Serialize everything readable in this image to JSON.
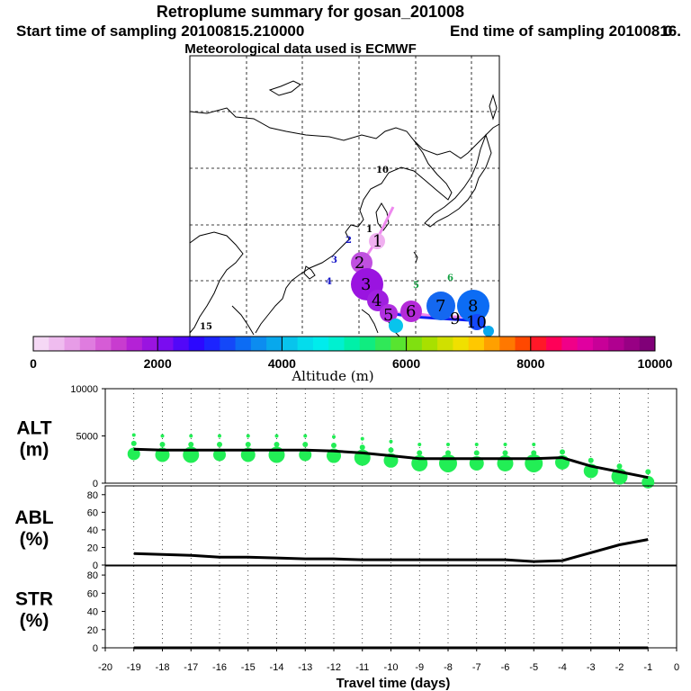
{
  "title": "Retroplume summary for gosan_201008",
  "subtitle_start": "Start time of sampling 20100815.210000",
  "subtitle_end": "End time of sampling 20100816.",
  "subtitle_end_zero": "0",
  "met_line": "Meteorological data used is ECMWF",
  "colorbar": {
    "labels": [
      "0",
      "2000",
      "4000",
      "6000",
      "8000",
      "10000"
    ],
    "title": "Altitude (m)",
    "colors": [
      "#f5d8f5",
      "#efbcef",
      "#e79ce7",
      "#df7cdf",
      "#d65cd6",
      "#c83ccf",
      "#b422d6",
      "#9a14e0",
      "#7a0cf0",
      "#5208f8",
      "#2c08ff",
      "#1c24ff",
      "#1448f8",
      "#0c6cf4",
      "#0c8cf0",
      "#08a8ec",
      "#08c4ec",
      "#04dcec",
      "#00ecec",
      "#00f0d0",
      "#00f0a8",
      "#10ec80",
      "#30e858",
      "#58e430",
      "#80e010",
      "#a8e000",
      "#d0e000",
      "#f0e000",
      "#ffc800",
      "#ffa000",
      "#ff7800",
      "#ff4800",
      "#ff1828",
      "#ff0058",
      "#f00088",
      "#e000a0",
      "#c80098",
      "#b00090",
      "#980084",
      "#800078"
    ]
  },
  "map": {
    "numbers_big": [
      "1",
      "2",
      "3",
      "4",
      "5",
      "6",
      "7",
      "8",
      "9",
      "10"
    ],
    "numbers_small": [
      "1",
      "2",
      "3",
      "4",
      "5",
      "6",
      "10",
      "15"
    ]
  },
  "chart_data": [
    {
      "type": "line",
      "panel": "ALT",
      "ylabel_line1": "ALT",
      "ylabel_line2": "(m)",
      "x": [
        -19,
        -18,
        -17,
        -16,
        -15,
        -14,
        -13,
        -12,
        -11,
        -10,
        -9,
        -8,
        -7,
        -6,
        -5,
        -4,
        -3,
        -2,
        -1
      ],
      "values": [
        3600,
        3500,
        3500,
        3500,
        3500,
        3500,
        3500,
        3400,
        3200,
        2900,
        2600,
        2600,
        2600,
        2600,
        2600,
        2700,
        1800,
        1200,
        600
      ],
      "ylim": [
        0,
        10000
      ],
      "yticks": [
        "0",
        "5000",
        "10000"
      ]
    },
    {
      "type": "line",
      "panel": "ABL",
      "ylabel_line1": "ABL",
      "ylabel_line2": "(%)",
      "x": [
        -19,
        -18,
        -17,
        -16,
        -15,
        -14,
        -13,
        -12,
        -11,
        -10,
        -9,
        -8,
        -7,
        -6,
        -5,
        -4,
        -3,
        -2,
        -1
      ],
      "values": [
        13,
        12,
        11,
        9,
        9,
        8,
        7,
        7,
        6,
        6,
        6,
        6,
        6,
        6,
        4,
        5,
        14,
        23,
        29
      ],
      "ylim": [
        0,
        90
      ],
      "yticks": [
        "0",
        "20",
        "40",
        "60",
        "80"
      ]
    },
    {
      "type": "line",
      "panel": "STR",
      "ylabel_line1": "STR",
      "ylabel_line2": "(%)",
      "x": [
        -19,
        -18,
        -17,
        -16,
        -15,
        -14,
        -13,
        -12,
        -11,
        -10,
        -9,
        -8,
        -7,
        -6,
        -5,
        -4,
        -3,
        -2,
        -1
      ],
      "values": [
        0,
        0,
        0,
        0,
        0,
        0,
        0,
        0,
        0,
        0,
        0,
        0,
        0,
        0,
        0,
        0,
        0,
        0,
        0
      ],
      "ylim": [
        0,
        90
      ],
      "yticks": [
        "0",
        "20",
        "40",
        "60",
        "80"
      ]
    }
  ],
  "xaxis": {
    "ticks": [
      "-20",
      "-19",
      "-18",
      "-17",
      "-16",
      "-15",
      "-14",
      "-13",
      "-12",
      "-11",
      "-10",
      "-9",
      "-8",
      "-7",
      "-6",
      "-5",
      "-4",
      "-3",
      "-2",
      "-1",
      "0"
    ],
    "title": "Travel time (days)"
  }
}
